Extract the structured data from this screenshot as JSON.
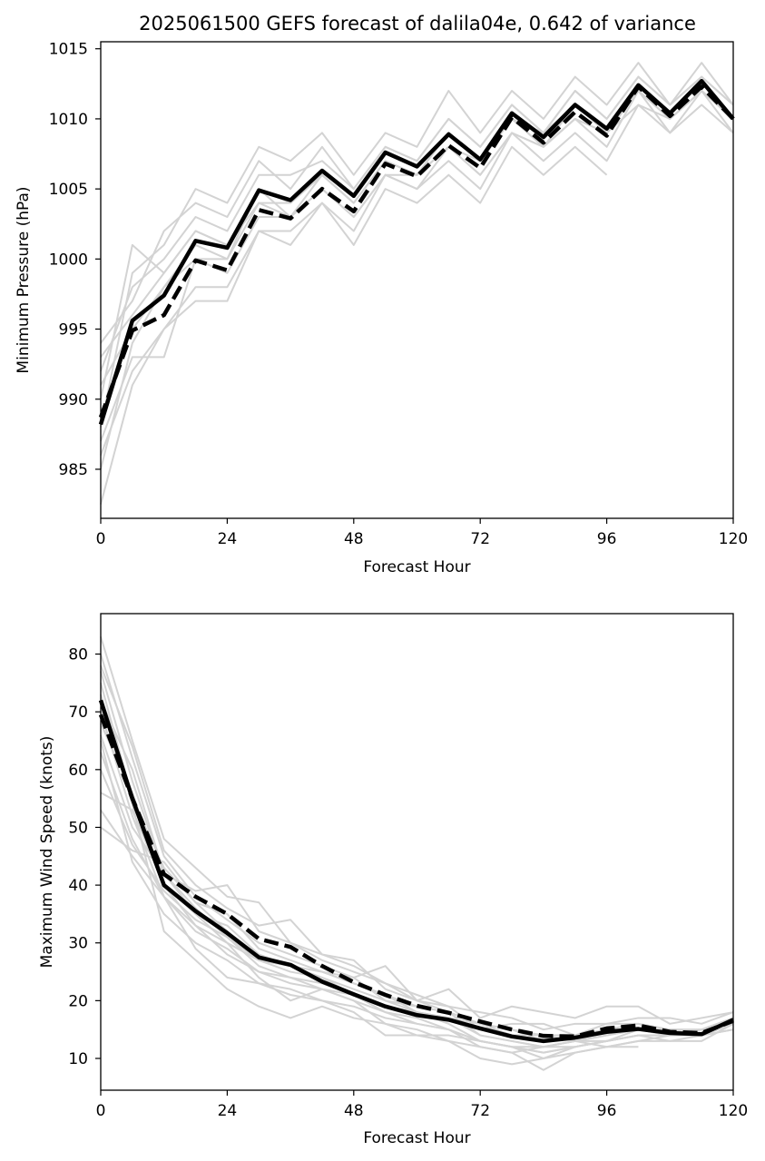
{
  "chart_data": [
    {
      "type": "line",
      "title": "2025061500 GEFS forecast of dalila04e, 0.642 of variance",
      "xlabel": "Forecast Hour",
      "ylabel": "Minimum Pressure (hPa)",
      "xlim": [
        0,
        120
      ],
      "ylim": [
        981.5,
        1015.5
      ],
      "xticks": [
        0,
        24,
        48,
        72,
        96,
        120
      ],
      "yticks": [
        985,
        990,
        995,
        1000,
        1005,
        1010,
        1015
      ],
      "grid": false,
      "legend": "none",
      "colors": {
        "members": "#d3d3d3",
        "main": "#000000"
      },
      "x": [
        0,
        6,
        12,
        18,
        24,
        30,
        36,
        42,
        48,
        54,
        60,
        66,
        72,
        78,
        84,
        90,
        96,
        102,
        108,
        114,
        120
      ],
      "members": [
        [
          988,
          999,
          1001,
          1005,
          1004,
          1008,
          1007,
          1009,
          1006,
          1009,
          1008,
          1012,
          1009,
          1012,
          1010,
          1013,
          1011,
          1014,
          1011,
          1014,
          1011
        ],
        [
          982.5,
          991,
          995,
          997,
          997,
          1002,
          1001,
          1004,
          1001,
          1005,
          1004,
          1006,
          1004,
          1008,
          1006,
          1008,
          1006
        ],
        [
          986,
          992,
          995,
          998,
          998,
          1002,
          1002,
          1004,
          1002,
          1006,
          1005,
          1007,
          1005,
          1009,
          1007,
          1009,
          1007,
          1011,
          1009,
          1011,
          1009
        ],
        [
          990,
          1001,
          999,
          1002,
          1001,
          1005,
          1004,
          1006,
          1004,
          1007,
          1006,
          1009,
          1007,
          1010,
          1008,
          1011,
          1009,
          1012,
          1010,
          1012,
          1010
        ],
        [
          994,
          997,
          1002,
          1004,
          1003,
          1007,
          1005,
          1008,
          1005,
          1008,
          1007,
          1010,
          1008,
          1011,
          1009,
          1012,
          1010,
          1013,
          1011,
          1013,
          1011
        ],
        [
          992,
          998,
          1000,
          1003,
          1002,
          1006,
          1006,
          1007,
          1005,
          1008,
          1007,
          1010,
          1008,
          1011,
          1009,
          1012,
          1010,
          1013,
          1011,
          1013,
          1011
        ],
        [
          985,
          994,
          998,
          1000,
          999,
          1003,
          1003,
          1005,
          1003,
          1006,
          1006,
          1008,
          1006,
          1009,
          1008,
          1010,
          1009,
          1012,
          1010,
          1012,
          1010
        ],
        [
          993,
          996,
          999,
          1002,
          1001,
          1004,
          1004,
          1006,
          1004,
          1007,
          1006,
          1008,
          1007,
          1010,
          1009,
          1011,
          1009,
          1012,
          1010,
          1012,
          1010
        ],
        [
          987,
          993,
          993,
          1000,
          1000,
          1004,
          1003,
          1005,
          1003,
          1006,
          1005,
          1008,
          1006,
          1009,
          1008,
          1010,
          1009,
          1011,
          1010,
          1012,
          1010
        ],
        [
          991,
          995,
          998,
          1001,
          1000,
          1005,
          1003,
          1006,
          1004,
          1007,
          1006,
          1009,
          1007,
          1010,
          1008,
          1010,
          1008,
          1012,
          1009,
          1012,
          1009
        ]
      ],
      "mean": [
        988.2,
        995.6,
        997.4,
        1001.3,
        1000.8,
        1004.9,
        1004.2,
        1006.3,
        1004.5,
        1007.6,
        1006.6,
        1008.9,
        1007.1,
        1010.4,
        1008.7,
        1011.0,
        1009.3,
        1012.4,
        1010.4,
        1012.7,
        1010.0
      ],
      "dashed": [
        988.7,
        994.9,
        996.0,
        999.9,
        999.2,
        1003.5,
        1002.9,
        1005.0,
        1003.4,
        1006.8,
        1005.9,
        1008.1,
        1006.5,
        1010.1,
        1008.3,
        1010.5,
        1008.8,
        1012.3,
        1010.2,
        1012.3,
        1010.0
      ]
    },
    {
      "type": "line",
      "xlabel": "Forecast Hour",
      "ylabel": "Maximum Wind Speed (knots)",
      "xlim": [
        0,
        120
      ],
      "ylim": [
        4.5,
        87
      ],
      "xticks": [
        0,
        24,
        48,
        72,
        96,
        120
      ],
      "yticks": [
        10,
        20,
        30,
        40,
        50,
        60,
        70,
        80
      ],
      "grid": false,
      "legend": "none",
      "colors": {
        "members": "#d3d3d3",
        "main": "#000000"
      },
      "x": [
        0,
        6,
        12,
        18,
        24,
        30,
        36,
        42,
        48,
        54,
        60,
        66,
        72,
        78,
        84,
        90,
        96,
        102,
        108,
        114,
        120
      ],
      "members": [
        [
          83,
          65,
          48,
          43,
          38,
          37,
          30,
          28,
          27,
          22,
          20,
          22,
          17,
          19,
          18,
          17,
          19,
          19,
          16,
          17,
          18
        ],
        [
          80,
          62,
          45,
          38,
          34,
          30,
          28,
          26,
          24,
          20,
          19,
          18,
          16,
          14,
          14,
          13,
          15,
          16,
          14,
          14,
          16
        ],
        [
          77,
          58,
          42,
          39,
          40,
          32,
          30,
          27,
          25,
          23,
          20,
          19,
          15,
          16,
          16,
          14,
          16,
          16,
          15,
          15,
          17
        ],
        [
          75,
          55,
          43,
          37,
          35,
          29,
          27,
          25,
          23,
          21,
          18,
          17,
          14,
          13,
          12,
          13,
          14,
          15,
          15,
          14,
          16
        ],
        [
          73,
          54,
          32,
          27,
          22,
          19,
          17,
          19,
          17,
          16,
          14,
          13,
          12,
          11,
          12,
          12,
          13,
          14,
          14,
          14,
          15
        ],
        [
          70,
          52,
          38,
          32,
          29,
          25,
          24,
          22,
          21,
          18,
          17,
          15,
          13,
          12,
          11,
          12,
          13,
          14,
          14,
          14,
          15
        ],
        [
          68,
          56,
          40,
          35,
          33,
          28,
          26,
          24,
          22,
          20,
          18,
          17,
          16,
          14,
          14,
          14,
          15,
          15,
          14,
          15,
          16
        ],
        [
          66,
          50,
          42,
          36,
          31,
          27,
          26,
          25,
          23,
          21,
          19,
          18,
          16,
          15,
          14,
          13,
          14,
          15,
          14,
          14,
          16
        ],
        [
          63,
          48,
          38,
          33,
          30,
          27,
          25,
          24,
          21,
          19,
          18,
          17,
          16,
          15,
          13,
          14,
          15,
          15,
          14,
          15,
          17
        ],
        [
          60,
          47,
          39,
          34,
          31,
          26,
          24,
          23,
          21,
          19,
          18,
          16,
          13,
          12,
          10,
          12,
          13,
          14,
          14,
          14,
          16
        ],
        [
          56,
          53,
          40,
          33,
          28,
          25,
          23,
          22,
          20,
          18,
          16,
          15,
          13,
          12,
          11,
          12,
          13,
          15,
          14,
          15,
          16
        ],
        [
          53,
          45,
          38,
          29,
          24,
          23,
          21,
          20,
          19,
          17,
          16,
          15,
          12,
          11,
          8,
          11,
          12,
          13,
          14,
          14,
          17
        ],
        [
          50,
          46,
          44,
          37,
          32,
          27,
          26,
          25,
          24,
          26,
          20,
          18,
          14,
          13,
          12,
          13,
          12,
          13,
          13,
          13,
          16
        ],
        [
          72,
          60,
          42,
          35,
          30,
          24,
          20,
          22,
          20,
          16,
          15,
          13,
          10,
          9,
          10,
          11,
          12,
          12
        ],
        [
          78,
          64,
          46,
          40,
          36,
          33,
          34,
          28,
          26,
          23,
          21,
          19,
          18,
          17,
          15,
          16,
          16,
          17,
          17,
          16,
          18
        ],
        [
          65,
          44,
          35,
          30,
          27,
          23,
          22,
          20,
          18,
          14,
          14,
          14,
          13,
          12,
          12,
          13,
          13,
          14,
          13,
          14,
          15
        ]
      ],
      "mean": [
        72.0,
        55.0,
        40.0,
        35.5,
        31.7,
        27.5,
        26.2,
        23.3,
        21.1,
        19.0,
        17.5,
        16.7,
        15.2,
        13.8,
        13.0,
        13.6,
        14.6,
        15.1,
        14.4,
        14.2,
        16.7
      ],
      "dashed": [
        69.5,
        55.0,
        41.9,
        38.0,
        35.0,
        30.7,
        29.3,
        26.0,
        23.2,
        21.0,
        19.1,
        17.9,
        16.4,
        15.0,
        13.9,
        13.8,
        15.2,
        15.7,
        14.6,
        14.4,
        16.5
      ]
    }
  ]
}
